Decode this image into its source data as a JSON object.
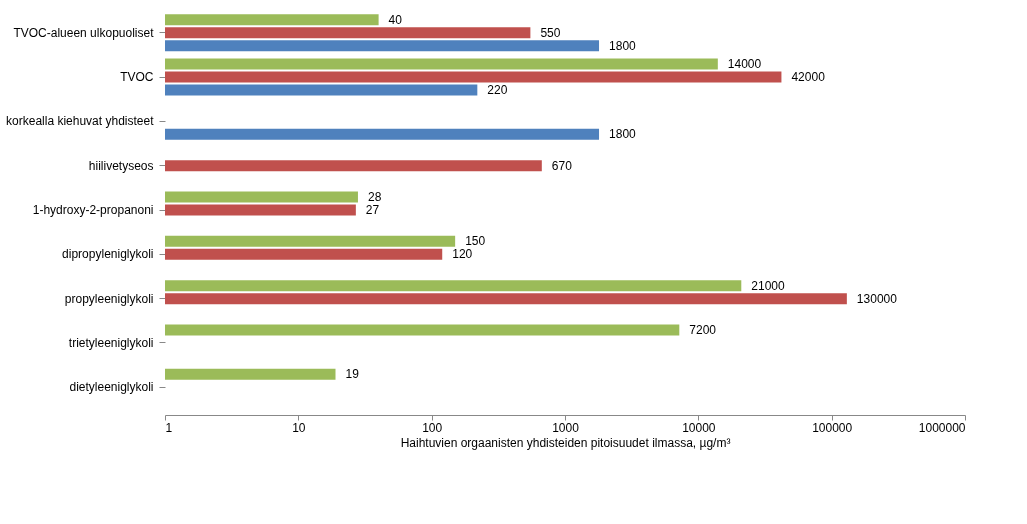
{
  "chart_data": {
    "type": "bar",
    "orientation": "horizontal",
    "log": "x",
    "xlabel": "Haihtuvien orgaanisten yhdisteiden pitoisuudet ilmassa, µg/m³",
    "categories": [
      "TVOC-alueen ulkopuoliset",
      "TVOC",
      "korkealla kiehuvat yhdisteet",
      "hiilivetyseos",
      "1-hydroxy-2-propanoni",
      "dipropyleniglykoli",
      "propyleeniglykoli",
      "trietyleeniglykoli",
      "dietyleeniglykoli"
    ],
    "series": [
      {
        "color": "#9bbb59",
        "values": [
          40,
          14000,
          null,
          null,
          28,
          150,
          21000,
          7200,
          19
        ]
      },
      {
        "color": "#c0504d",
        "values": [
          550,
          42000,
          null,
          670,
          27,
          120,
          130000,
          null,
          null
        ]
      },
      {
        "color": "#4f81bd",
        "values": [
          1800,
          220,
          1800,
          null,
          null,
          null,
          null,
          null,
          null
        ]
      }
    ],
    "xlim": [
      1,
      1000000
    ],
    "xticks": [
      1,
      10,
      100,
      1000,
      10000,
      100000,
      1000000
    ],
    "grid": false,
    "legend": false,
    "data_labels": true
  }
}
